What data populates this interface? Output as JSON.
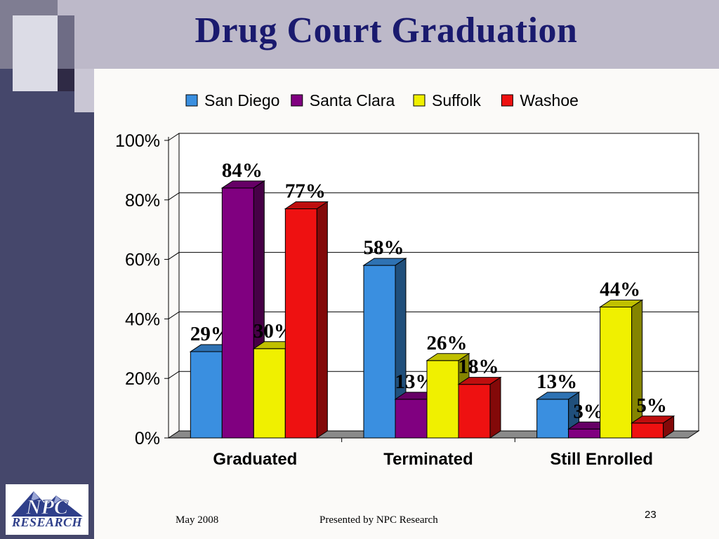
{
  "slide": {
    "title": "Drug Court Graduation",
    "footer_date": "May 2008",
    "footer_presenter": "Presented by NPC Research",
    "page_number": "23",
    "logo_text": "RESEARCH",
    "logo_mark": "NPC"
  },
  "colors": {
    "title": "#1a1a6e",
    "sidebar": "#45476b",
    "topbar": "#bdb9c9",
    "series": [
      "#3a8fe0",
      "#800080",
      "#f0f000",
      "#ee1111"
    ]
  },
  "chart_data": {
    "type": "bar",
    "style": "3d-clustered",
    "categories": [
      "Graduated",
      "Terminated",
      "Still Enrolled"
    ],
    "series": [
      {
        "name": "San Diego",
        "values": [
          29,
          58,
          13
        ],
        "labels": [
          "29%",
          "58%",
          "13%"
        ]
      },
      {
        "name": "Santa Clara",
        "values": [
          84,
          13,
          3
        ],
        "labels": [
          "84%",
          "13%",
          "3%"
        ]
      },
      {
        "name": "Suffolk",
        "values": [
          30,
          26,
          44
        ],
        "labels": [
          "30%",
          "26%",
          "44%"
        ]
      },
      {
        "name": "Washoe",
        "values": [
          77,
          18,
          5
        ],
        "labels": [
          "77%",
          "18%",
          "5%"
        ]
      }
    ],
    "yticks": [
      "0%",
      "20%",
      "40%",
      "60%",
      "80%",
      "100%"
    ],
    "ylim": [
      0,
      100
    ],
    "grid": true,
    "legend_position": "top"
  }
}
